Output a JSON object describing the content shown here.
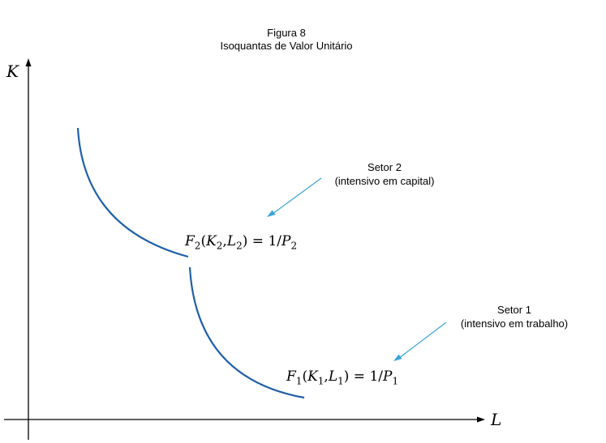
{
  "figure": {
    "number_label": "Figura 8",
    "title": "Isoquantas de Valor Unitário"
  },
  "axes": {
    "y_label": "K",
    "x_label": "L"
  },
  "sectors": [
    {
      "name": "Setor 2",
      "description": "(intensivo em capital)"
    },
    {
      "name": "Setor 1",
      "description": "(intensivo em trabalho)"
    }
  ],
  "equations": {
    "sector2": {
      "F": "F",
      "Fsub": "2",
      "open": "(",
      "K": "K",
      "Ksub": "2",
      "comma": ",",
      "L": "L",
      "Lsub": "2",
      "close": ")",
      "eq": " = 1/",
      "P": "P",
      "Psub": "2"
    },
    "sector1": {
      "F": "F",
      "Fsub": "1",
      "open": "(",
      "K": "K",
      "Ksub": "1",
      "comma": ",",
      "L": "L",
      "Lsub": "1",
      "close": ")",
      "eq": " = 1/",
      "P": "P",
      "Psub": "1"
    }
  },
  "colors": {
    "curve": "#1f5fa8",
    "arrow": "#3aa3dc",
    "axis": "#000000"
  }
}
